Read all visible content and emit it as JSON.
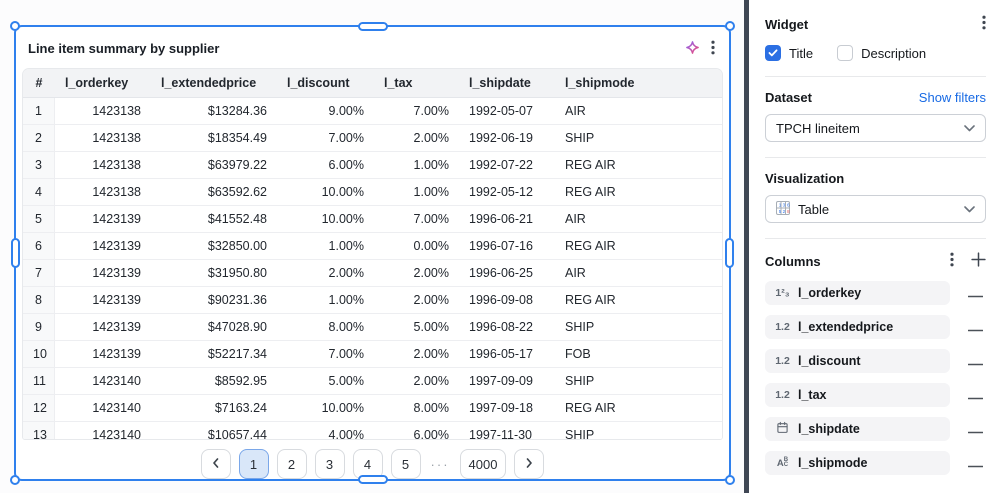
{
  "canvas": {
    "widget": {
      "title": "Line item summary by supplier",
      "header_icons": {
        "ai": "sparkle-icon",
        "menu": "kebab-menu-icon"
      },
      "table": {
        "headers": [
          "#",
          "l_orderkey",
          "l_extendedprice",
          "l_discount",
          "l_tax",
          "l_shipdate",
          "l_shipmode"
        ],
        "rows": [
          [
            "1",
            "1423138",
            "$13284.36",
            "9.00%",
            "7.00%",
            "1992-05-07",
            "AIR"
          ],
          [
            "2",
            "1423138",
            "$18354.49",
            "7.00%",
            "2.00%",
            "1992-06-19",
            "SHIP"
          ],
          [
            "3",
            "1423138",
            "$63979.22",
            "6.00%",
            "1.00%",
            "1992-07-22",
            "REG AIR"
          ],
          [
            "4",
            "1423138",
            "$63592.62",
            "10.00%",
            "1.00%",
            "1992-05-12",
            "REG AIR"
          ],
          [
            "5",
            "1423139",
            "$41552.48",
            "10.00%",
            "7.00%",
            "1996-06-21",
            "AIR"
          ],
          [
            "6",
            "1423139",
            "$32850.00",
            "1.00%",
            "0.00%",
            "1996-07-16",
            "REG AIR"
          ],
          [
            "7",
            "1423139",
            "$31950.80",
            "2.00%",
            "2.00%",
            "1996-06-25",
            "AIR"
          ],
          [
            "8",
            "1423139",
            "$90231.36",
            "1.00%",
            "2.00%",
            "1996-09-08",
            "REG AIR"
          ],
          [
            "9",
            "1423139",
            "$47028.90",
            "8.00%",
            "5.00%",
            "1996-08-22",
            "SHIP"
          ],
          [
            "10",
            "1423139",
            "$52217.34",
            "7.00%",
            "2.00%",
            "1996-05-17",
            "FOB"
          ],
          [
            "11",
            "1423140",
            "$8592.95",
            "5.00%",
            "2.00%",
            "1997-09-09",
            "SHIP"
          ],
          [
            "12",
            "1423140",
            "$7163.24",
            "10.00%",
            "8.00%",
            "1997-09-18",
            "REG AIR"
          ],
          [
            "13",
            "1423140",
            "$10657.44",
            "4.00%",
            "6.00%",
            "1997-11-30",
            "SHIP"
          ]
        ]
      },
      "pagination": {
        "prev_icon": "chevron-left-icon",
        "next_icon": "chevron-right-icon",
        "pages": [
          "1",
          "2",
          "3",
          "4",
          "5"
        ],
        "active_page": "1",
        "ellipsis": "···",
        "last_page": "4000"
      }
    }
  },
  "sidebar": {
    "widget": {
      "heading": "Widget",
      "menu_icon": "kebab-menu-icon",
      "checkboxes": [
        {
          "label": "Title",
          "checked": true
        },
        {
          "label": "Description",
          "checked": false
        }
      ]
    },
    "dataset": {
      "heading": "Dataset",
      "filters_link": "Show filters",
      "selected": "TPCH lineitem"
    },
    "visualization": {
      "heading": "Visualization",
      "selected": "Table",
      "selected_icon": "table-grid-icon"
    },
    "columns": {
      "heading": "Columns",
      "menu_icon": "kebab-menu-icon",
      "add_icon": "plus-icon",
      "remove_icon": "minus-icon",
      "items": [
        {
          "label": "l_orderkey",
          "type": "integer",
          "icon": "number-123-icon",
          "glyph": "1²₃"
        },
        {
          "label": "l_extendedprice",
          "type": "decimal",
          "icon": "decimal-12-icon",
          "glyph": "1.2"
        },
        {
          "label": "l_discount",
          "type": "decimal",
          "icon": "decimal-12-icon",
          "glyph": "1.2"
        },
        {
          "label": "l_tax",
          "type": "decimal",
          "icon": "decimal-12-icon",
          "glyph": "1.2"
        },
        {
          "label": "l_shipdate",
          "type": "date",
          "icon": "calendar-icon",
          "glyph": ""
        },
        {
          "label": "l_shipmode",
          "type": "text",
          "icon": "text-abc-icon",
          "glyph": "ABC"
        }
      ]
    }
  },
  "colors": {
    "selection_blue": "#2f80ed",
    "checkbox_blue": "#2b6fe3",
    "link_blue": "#186ae4",
    "active_page_bg": "#d9e7f9",
    "header_bg": "#f2f3f5",
    "pill_bg": "#f4f4f6",
    "panel_divider": "#3f4754"
  }
}
